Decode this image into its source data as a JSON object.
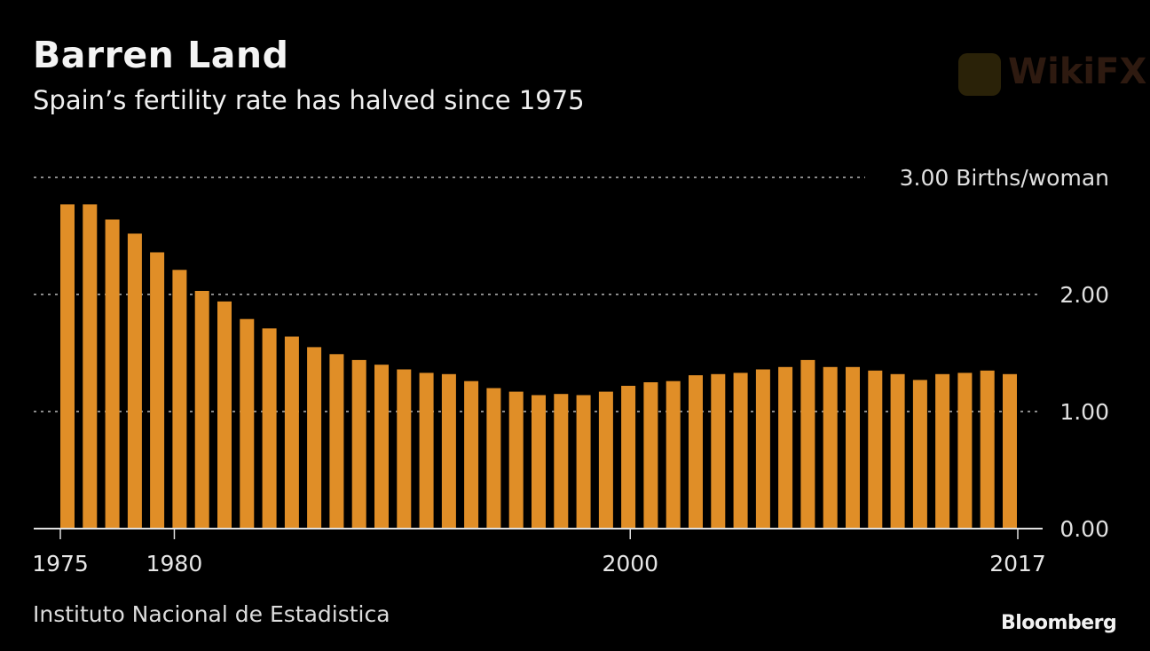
{
  "header": {
    "title": "Barren Land",
    "subtitle": "Spain’s fertility rate has halved since 1975"
  },
  "footer": {
    "source": "Instituto Nacional de Estadistica",
    "brand": "Bloomberg",
    "watermark": "WikiFX"
  },
  "colors": {
    "background": "#000000",
    "bar": "#E08E27",
    "gridline": "#8a8a8a",
    "axis": "#e0e0e0"
  },
  "chart_data": {
    "type": "bar",
    "title": "Barren Land",
    "subtitle": "Spain’s fertility rate has halved since 1975",
    "xlabel": "",
    "ylabel": "Births/woman",
    "ylim": [
      0,
      3
    ],
    "grid": true,
    "y_ticks": [
      {
        "value": 0,
        "label": "0.00"
      },
      {
        "value": 1,
        "label": "1.00"
      },
      {
        "value": 2,
        "label": "2.00"
      },
      {
        "value": 3,
        "label": "3.00 Births/woman"
      }
    ],
    "x_ticks": [
      {
        "value": 1975,
        "label": "1975"
      },
      {
        "value": 1980,
        "label": "1980"
      },
      {
        "value": 2000,
        "label": "2000"
      },
      {
        "value": 2017,
        "label": "2017"
      }
    ],
    "categories": [
      1975,
      1976,
      1977,
      1978,
      1979,
      1980,
      1981,
      1982,
      1983,
      1984,
      1985,
      1986,
      1987,
      1988,
      1989,
      1990,
      1991,
      1992,
      1993,
      1994,
      1995,
      1996,
      1997,
      1998,
      1999,
      2000,
      2001,
      2002,
      2003,
      2004,
      2005,
      2006,
      2007,
      2008,
      2009,
      2010,
      2011,
      2012,
      2013,
      2014,
      2015,
      2016,
      2017
    ],
    "values": [
      2.77,
      2.77,
      2.64,
      2.52,
      2.36,
      2.21,
      2.03,
      1.94,
      1.79,
      1.71,
      1.64,
      1.55,
      1.49,
      1.44,
      1.4,
      1.36,
      1.33,
      1.32,
      1.26,
      1.2,
      1.17,
      1.14,
      1.15,
      1.14,
      1.17,
      1.22,
      1.25,
      1.26,
      1.31,
      1.32,
      1.33,
      1.36,
      1.38,
      1.44,
      1.38,
      1.38,
      1.35,
      1.32,
      1.27,
      1.32,
      1.33,
      1.35,
      1.32
    ],
    "source": "Instituto Nacional de Estadistica"
  }
}
